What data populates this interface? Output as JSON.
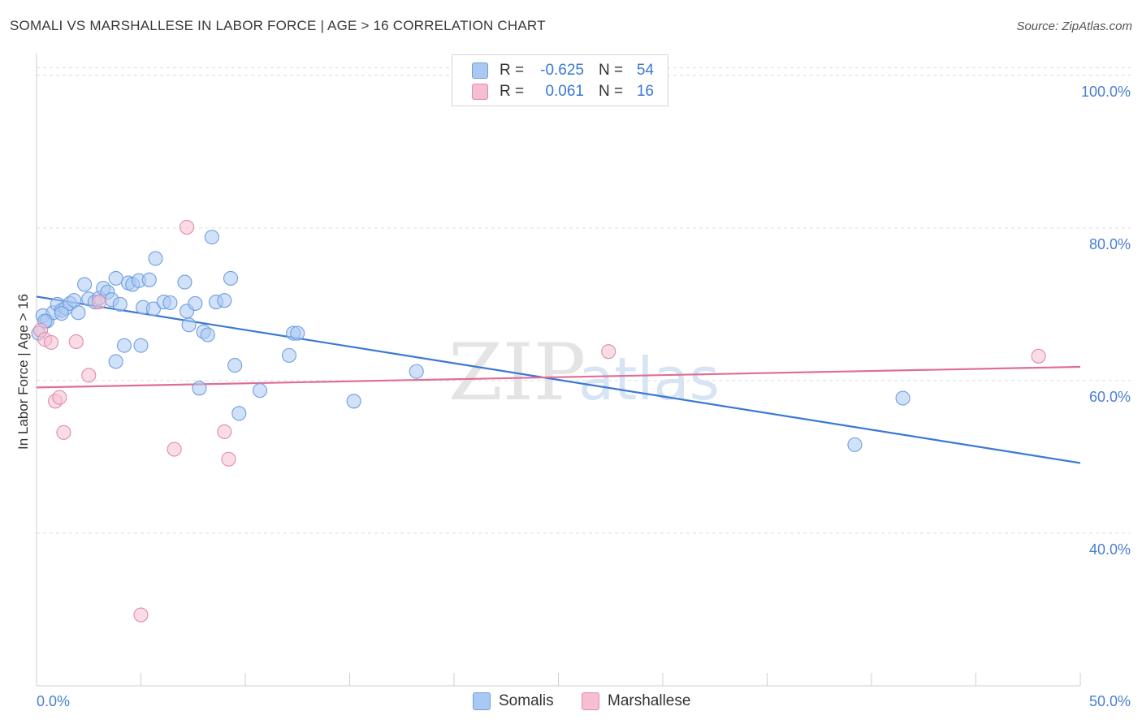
{
  "title": "SOMALI VS MARSHALLESE IN LABOR FORCE | AGE > 16 CORRELATION CHART",
  "source": "Source: ZipAtlas.com",
  "watermark": {
    "zip": "ZIP",
    "atlas": "atlas"
  },
  "legend": {
    "rows": [
      {
        "r_label": "R =",
        "r_value": "-0.625",
        "n_label": "N =",
        "n_value": "54",
        "color": "#a9c8f2",
        "border": "#6f9fdf"
      },
      {
        "r_label": "R =",
        "r_value": "0.061",
        "n_label": "N =",
        "n_value": "16",
        "color": "#f6bfd0",
        "border": "#e48aa7"
      }
    ]
  },
  "bottom_legend": [
    {
      "label": "Somalis",
      "color": "#a9c8f2",
      "border": "#6f9fdf"
    },
    {
      "label": "Marshallese",
      "color": "#f6bfd0",
      "border": "#e48aa7"
    }
  ],
  "chart_data": {
    "type": "scatter",
    "title": "SOMALI VS MARSHALLESE IN LABOR FORCE | AGE > 16 CORRELATION CHART",
    "xlabel": "",
    "ylabel": "In Labor Force | Age > 16",
    "xlim": [
      0,
      50
    ],
    "ylim": [
      20,
      102
    ],
    "x_tick_labels": [
      "0.0%",
      "50.0%"
    ],
    "y_ticks": [
      40,
      60,
      80,
      100
    ],
    "y_tick_labels": [
      "40.0%",
      "60.0%",
      "80.0%",
      "100.0%"
    ],
    "grid": "horizontal dashed",
    "colors": {
      "somalis": "#3a78d4",
      "marshallese": "#e06d96"
    },
    "series": [
      {
        "name": "Somalis",
        "points": [
          [
            0.1,
            66.2
          ],
          [
            0.3,
            68.5
          ],
          [
            0.5,
            67.8
          ],
          [
            0.8,
            68.9
          ],
          [
            1.0,
            70.0
          ],
          [
            1.2,
            69.2
          ],
          [
            1.4,
            69.5
          ],
          [
            1.6,
            70.1
          ],
          [
            1.8,
            70.5
          ],
          [
            2.0,
            68.9
          ],
          [
            2.3,
            72.6
          ],
          [
            2.5,
            70.7
          ],
          [
            2.8,
            70.3
          ],
          [
            3.0,
            70.8
          ],
          [
            3.2,
            72.1
          ],
          [
            3.4,
            71.6
          ],
          [
            3.6,
            70.6
          ],
          [
            3.8,
            73.4
          ],
          [
            4.0,
            70.0
          ],
          [
            4.2,
            64.6
          ],
          [
            4.4,
            72.8
          ],
          [
            4.6,
            72.6
          ],
          [
            4.9,
            73.1
          ],
          [
            5.0,
            64.6
          ],
          [
            5.1,
            69.6
          ],
          [
            5.4,
            73.2
          ],
          [
            5.6,
            69.4
          ],
          [
            5.7,
            76.0
          ],
          [
            6.1,
            70.3
          ],
          [
            6.4,
            70.2
          ],
          [
            7.1,
            72.9
          ],
          [
            7.2,
            69.1
          ],
          [
            7.3,
            67.3
          ],
          [
            7.6,
            70.1
          ],
          [
            7.8,
            59.0
          ],
          [
            8.0,
            66.4
          ],
          [
            8.2,
            66.0
          ],
          [
            8.4,
            78.8
          ],
          [
            8.6,
            70.3
          ],
          [
            9.0,
            70.5
          ],
          [
            9.3,
            73.4
          ],
          [
            9.5,
            62.0
          ],
          [
            9.7,
            55.7
          ],
          [
            10.7,
            58.7
          ],
          [
            12.1,
            63.3
          ],
          [
            12.3,
            66.2
          ],
          [
            12.5,
            66.2
          ],
          [
            15.2,
            57.3
          ],
          [
            18.2,
            61.2
          ],
          [
            39.2,
            51.6
          ],
          [
            41.5,
            57.7
          ],
          [
            3.8,
            62.5
          ],
          [
            1.2,
            68.8
          ],
          [
            0.4,
            67.8
          ]
        ]
      },
      {
        "name": "Marshallese",
        "points": [
          [
            0.2,
            66.6
          ],
          [
            0.4,
            65.4
          ],
          [
            0.7,
            65.0
          ],
          [
            0.9,
            57.3
          ],
          [
            1.1,
            57.8
          ],
          [
            1.3,
            53.2
          ],
          [
            1.9,
            65.1
          ],
          [
            2.5,
            60.7
          ],
          [
            3.0,
            70.3
          ],
          [
            5.0,
            29.3
          ],
          [
            6.6,
            51.0
          ],
          [
            7.2,
            80.1
          ],
          [
            9.0,
            53.3
          ],
          [
            9.2,
            49.7
          ],
          [
            27.4,
            63.8
          ],
          [
            48.0,
            63.2
          ]
        ]
      }
    ],
    "trendlines": [
      {
        "name": "Somalis",
        "from": [
          0,
          71.0
        ],
        "to": [
          50,
          49.2
        ]
      },
      {
        "name": "Marshallese",
        "from": [
          0,
          59.1
        ],
        "to": [
          50,
          61.8
        ]
      }
    ]
  }
}
